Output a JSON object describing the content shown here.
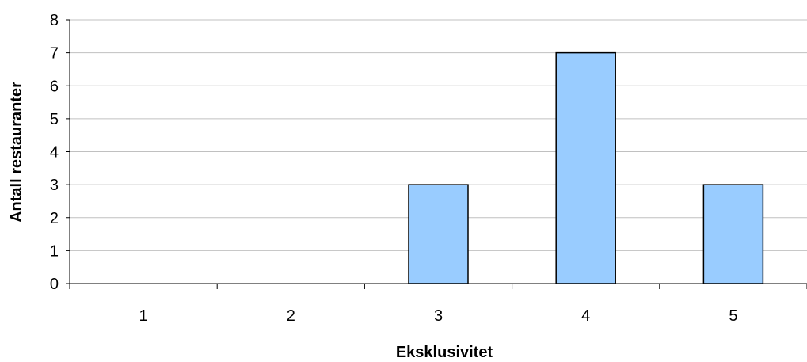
{
  "chart_data": {
    "type": "bar",
    "categories": [
      "1",
      "2",
      "3",
      "4",
      "5"
    ],
    "values": [
      0,
      0,
      3,
      7,
      3
    ],
    "xlabel": "Eksklusivitet",
    "ylabel": "Antall restauranter",
    "ylim": [
      0,
      8
    ],
    "yticks": [
      "0",
      "1",
      "2",
      "3",
      "4",
      "5",
      "6",
      "7",
      "8"
    ],
    "grid": true,
    "legend": "none",
    "bar_color": "#99ccff",
    "bar_border_color": "#000000",
    "grid_color": "#c0c0c0"
  }
}
